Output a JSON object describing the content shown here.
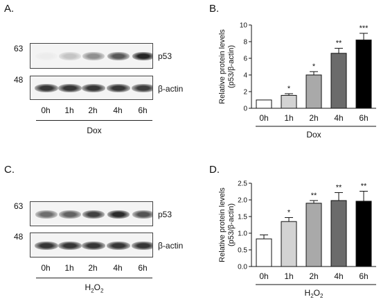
{
  "panels": {
    "A": {
      "letter": "A.",
      "mw_top": "63",
      "mw_bottom": "48",
      "top_blot": "p53",
      "bottom_blot": "β-actin",
      "lanes": [
        "0h",
        "1h",
        "2h",
        "4h",
        "6h"
      ],
      "treatment": "Dox"
    },
    "C": {
      "letter": "C.",
      "mw_top": "63",
      "mw_bottom": "48",
      "top_blot": "p53",
      "bottom_blot": "β-actin",
      "lanes": [
        "0h",
        "1h",
        "2h",
        "4h",
        "6h"
      ],
      "treatment_main": "H",
      "treatment_sub": "2",
      "treatment_mid": "O",
      "treatment_sub2": "2"
    },
    "B": {
      "letter": "B."
    },
    "D": {
      "letter": "D."
    }
  },
  "chart_data": [
    {
      "type": "bar",
      "ylabel": "Relative protein levels (p53/β-actin)",
      "ylabel_line1": "Relative protein levels",
      "ylabel_line2": "(p53/β-actin)",
      "xlabel": "Dox",
      "categories": [
        "0h",
        "1h",
        "2h",
        "4h",
        "6h"
      ],
      "values": [
        1.0,
        1.55,
        4.0,
        6.6,
        8.2
      ],
      "errors": [
        0.0,
        0.2,
        0.4,
        0.6,
        0.8
      ],
      "significance": [
        "",
        "*",
        "*",
        "**",
        "***"
      ],
      "colors": [
        "#ffffff",
        "#d3d3d3",
        "#a9a9a9",
        "#6b6b6b",
        "#000000"
      ],
      "ylim": [
        0,
        10
      ],
      "yticks": [
        0,
        2,
        4,
        6,
        8,
        10
      ]
    },
    {
      "type": "bar",
      "ylabel": "Relative protein levels (p53/β-actin)",
      "ylabel_line1": "Relative protein levels",
      "ylabel_line2": "(p53/β-actin)",
      "xlabel": "H2O2",
      "categories": [
        "0h",
        "1h",
        "2h",
        "4h",
        "6h"
      ],
      "values": [
        0.83,
        1.35,
        1.9,
        1.98,
        1.96
      ],
      "errors": [
        0.12,
        0.12,
        0.08,
        0.24,
        0.3
      ],
      "significance": [
        "",
        "*",
        "**",
        "**",
        "**"
      ],
      "colors": [
        "#ffffff",
        "#d3d3d3",
        "#a9a9a9",
        "#6b6b6b",
        "#000000"
      ],
      "ylim": [
        0,
        2.5
      ],
      "yticks": [
        0.0,
        0.5,
        1.0,
        1.5,
        2.0,
        2.5
      ]
    }
  ],
  "blot_intensity": {
    "A_p53": [
      0.04,
      0.22,
      0.45,
      0.7,
      0.92
    ],
    "A_actin": [
      0.85,
      0.85,
      0.85,
      0.85,
      0.82
    ],
    "C_p53": [
      0.6,
      0.65,
      0.8,
      0.9,
      0.72
    ],
    "C_actin": [
      0.85,
      0.85,
      0.85,
      0.85,
      0.85
    ]
  }
}
